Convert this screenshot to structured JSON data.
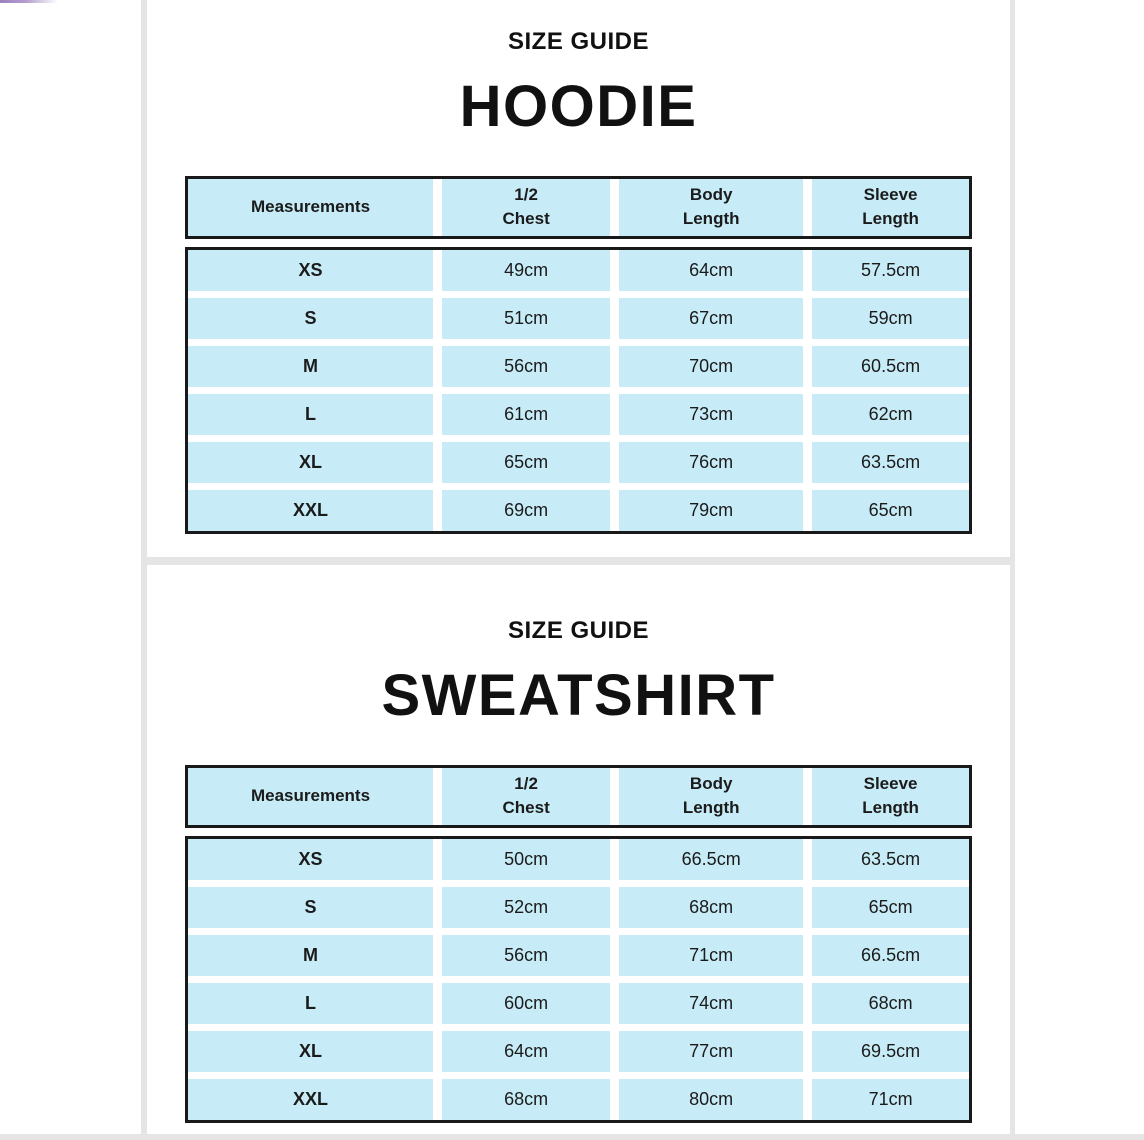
{
  "theme": {
    "accent_color": "#9d7fbd",
    "table_cell_color": "#c7ecf7",
    "table_border_color": "#191919",
    "gutter_color": "#e5e5e6"
  },
  "sections": [
    {
      "eyebrow": "SIZE GUIDE",
      "title": "HOODIE",
      "columns": [
        "Measurements",
        "1/2\nChest",
        "Body\nLength",
        "Sleeve\nLength"
      ],
      "rows": [
        {
          "size": "XS",
          "values": [
            "49cm",
            "64cm",
            "57.5cm"
          ]
        },
        {
          "size": "S",
          "values": [
            "51cm",
            "67cm",
            "59cm"
          ]
        },
        {
          "size": "M",
          "values": [
            "56cm",
            "70cm",
            "60.5cm"
          ]
        },
        {
          "size": "L",
          "values": [
            "61cm",
            "73cm",
            "62cm"
          ]
        },
        {
          "size": "XL",
          "values": [
            "65cm",
            "76cm",
            "63.5cm"
          ]
        },
        {
          "size": "XXL",
          "values": [
            "69cm",
            "79cm",
            "65cm"
          ]
        }
      ]
    },
    {
      "eyebrow": "SIZE GUIDE",
      "title": "SWEATSHIRT",
      "columns": [
        "Measurements",
        "1/2\nChest",
        "Body\nLength",
        "Sleeve\nLength"
      ],
      "rows": [
        {
          "size": "XS",
          "values": [
            "50cm",
            "66.5cm",
            "63.5cm"
          ]
        },
        {
          "size": "S",
          "values": [
            "52cm",
            "68cm",
            "65cm"
          ]
        },
        {
          "size": "M",
          "values": [
            "56cm",
            "71cm",
            "66.5cm"
          ]
        },
        {
          "size": "L",
          "values": [
            "60cm",
            "74cm",
            "68cm"
          ]
        },
        {
          "size": "XL",
          "values": [
            "64cm",
            "77cm",
            "69.5cm"
          ]
        },
        {
          "size": "XXL",
          "values": [
            "68cm",
            "80cm",
            "71cm"
          ]
        }
      ]
    }
  ]
}
